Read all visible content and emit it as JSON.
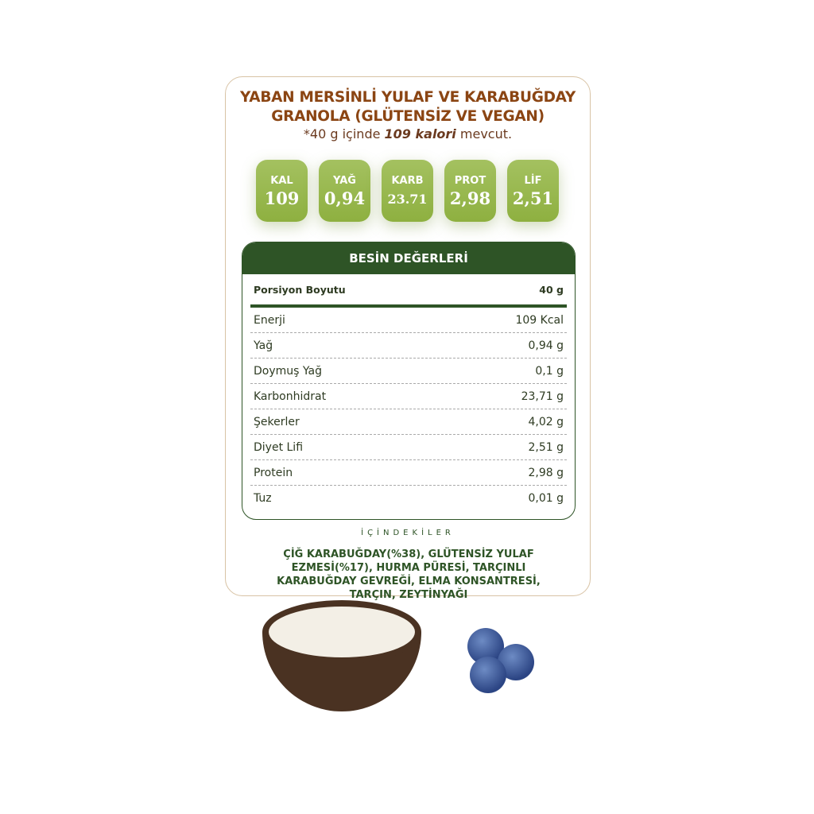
{
  "title": [
    "YABAN MERSİNLİ YULAF VE KARABUĞDAY",
    "GRANOLA (GLÜTENSİZ VE VEGAN)"
  ],
  "subtitle": {
    "pre": "*40 g içinde ",
    "bold": "109 kalori",
    "post": " mevcut."
  },
  "badges": [
    {
      "label": "KAL",
      "value": "109"
    },
    {
      "label": "YAĞ",
      "value": "0,94"
    },
    {
      "label": "KARB",
      "value": "23.71"
    },
    {
      "label": "PROT",
      "value": "2,98"
    },
    {
      "label": "LİF",
      "value": "2,51"
    }
  ],
  "nutrition": {
    "header": "BESİN DEĞERLERİ",
    "serving": {
      "label": "Porsiyon Boyutu",
      "value": "40 g"
    },
    "rows": [
      {
        "label": "Enerji",
        "value": "109 Kcal"
      },
      {
        "label": "Yağ",
        "value": "0,94 g"
      },
      {
        "label": "Doymuş Yağ",
        "value": "0,1 g"
      },
      {
        "label": "Karbonhidrat",
        "value": "23,71 g"
      },
      {
        "label": "Şekerler",
        "value": "4,02 g"
      },
      {
        "label": "Diyet Lifi",
        "value": "2,51 g"
      },
      {
        "label": "Protein",
        "value": "2,98 g"
      },
      {
        "label": "Tuz",
        "value": "0,01 g"
      }
    ]
  },
  "ingredients": {
    "title": "İÇİNDEKİLER",
    "text": "ÇİĞ KARABUĞDAY(%38), GLÜTENSİZ YULAF EZMESİ(%17), HURMA PÜRESİ, TARÇINLI KARABUĞDAY GEVREĞİ, ELMA KONSANTRESİ, TARÇIN, ZEYTİNYAĞI"
  },
  "colors": {
    "title": "#8b4513",
    "green": "#2e5426",
    "badge": "#9aba52"
  }
}
